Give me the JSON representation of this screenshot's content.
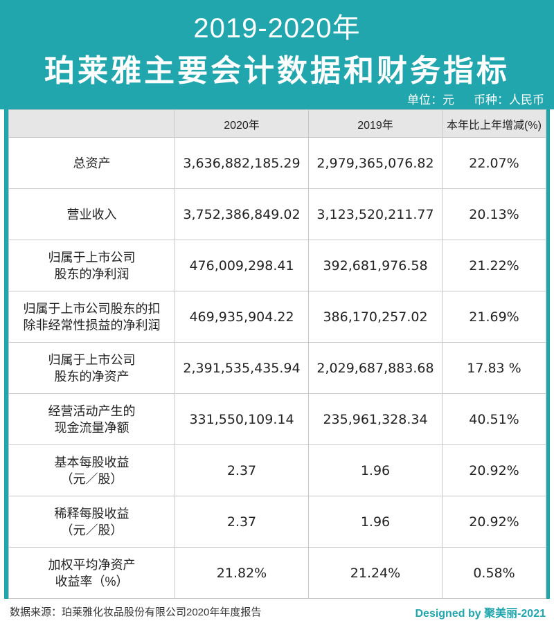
{
  "header": {
    "title_top": "2019-2020年",
    "title_main": "珀莱雅主要会计数据和财务指标",
    "unit": "单位：元",
    "currency": "币种：人民币"
  },
  "table": {
    "columns": [
      "",
      "2020年",
      "2019年",
      "本年比上年增减(%)"
    ],
    "rows": [
      {
        "label": [
          "总资产"
        ],
        "y2020": "3,636,882,185.29",
        "y2019": "2,979,365,076.82",
        "change": "22.07%"
      },
      {
        "label": [
          "营业收入"
        ],
        "y2020": "3,752,386,849.02",
        "y2019": "3,123,520,211.77",
        "change": "20.13%"
      },
      {
        "label": [
          "归属于上市公司",
          "股东的净利润"
        ],
        "y2020": "476,009,298.41",
        "y2019": "392,681,976.58",
        "change": "21.22%"
      },
      {
        "label": [
          "归属于上市公司股东的扣",
          "除非经常性损益的净利润"
        ],
        "y2020": "469,935,904.22",
        "y2019": "386,170,257.02",
        "change": "21.69%"
      },
      {
        "label": [
          "归属于上市公司",
          "股东的净资产"
        ],
        "y2020": "2,391,535,435.94",
        "y2019": "2,029,687,883.68",
        "change": "17.83 %"
      },
      {
        "label": [
          "经营活动产生的",
          "现金流量净额"
        ],
        "y2020": "331,550,109.14",
        "y2019": "235,961,328.34",
        "change": "40.51%"
      },
      {
        "label": [
          "基本每股收益",
          "（元／股）"
        ],
        "y2020": "2.37",
        "y2019": "1.96",
        "change": "20.92%"
      },
      {
        "label": [
          "稀释每股收益",
          "（元／股）"
        ],
        "y2020": "2.37",
        "y2019": "1.96",
        "change": "20.92%"
      },
      {
        "label": [
          "加权平均净资产",
          "收益率（%）"
        ],
        "y2020": "21.82%",
        "y2019": "21.24%",
        "change": "0.58%"
      }
    ]
  },
  "footer": {
    "source": "数据来源：珀莱雅化妆品股份有限公司2020年年度报告",
    "credit": "Designed by 聚美丽-2021"
  },
  "colors": {
    "accent": "#22a6ad",
    "header_row_bg": "#e6e6e6",
    "text": "#222222"
  }
}
